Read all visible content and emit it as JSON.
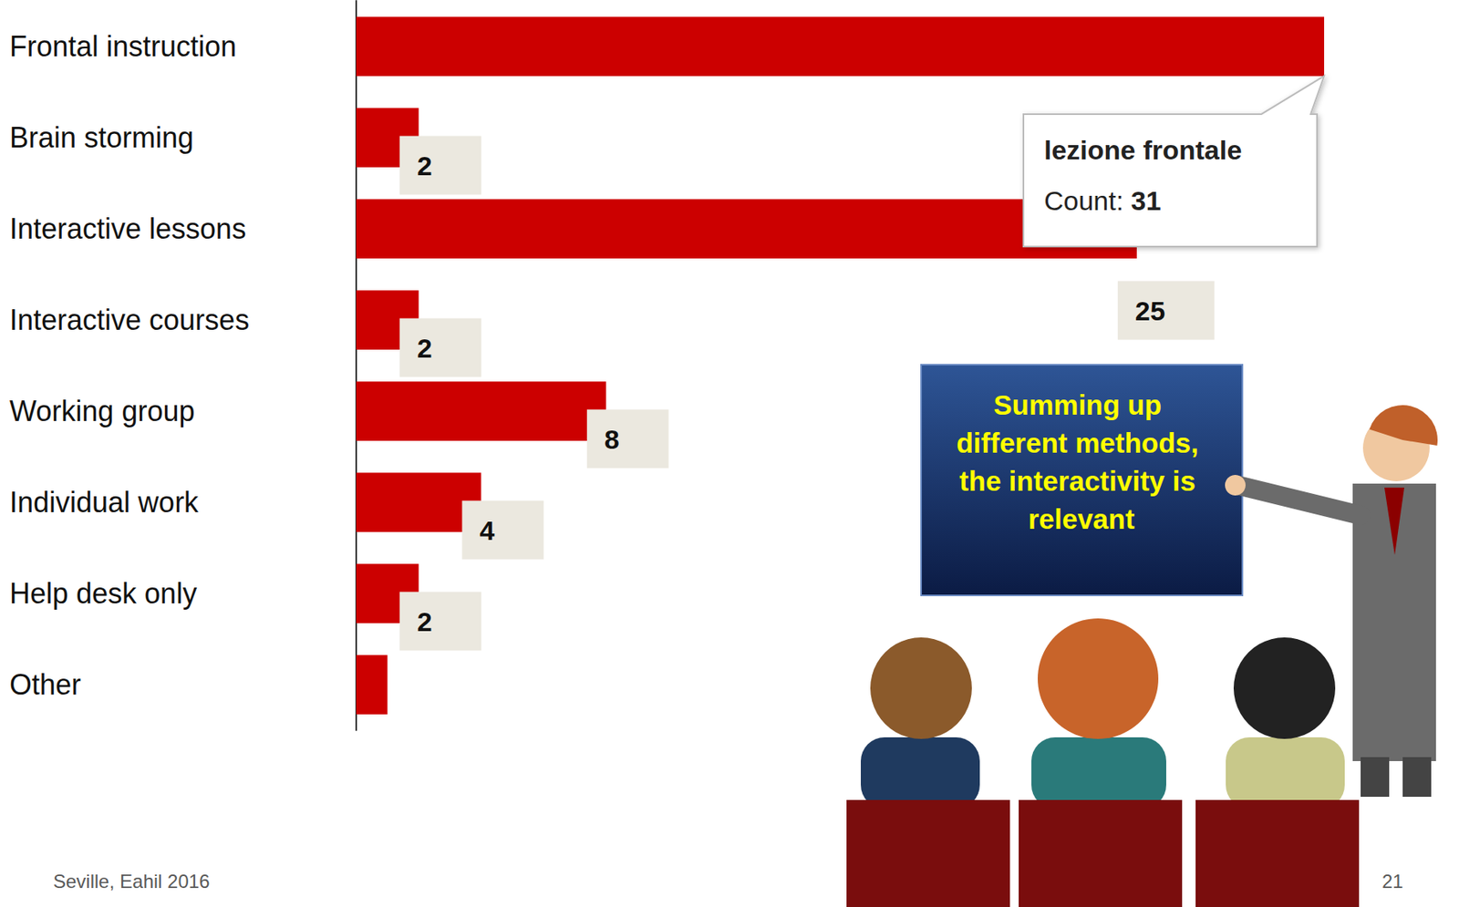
{
  "chart_data": {
    "type": "bar",
    "orientation": "horizontal",
    "categories": [
      "Frontal instruction",
      "Brain storming",
      "Interactive lessons",
      "Interactive courses",
      "Working group",
      "Individual work",
      "Help desk only",
      "Other"
    ],
    "values": [
      31,
      2,
      25,
      2,
      8,
      4,
      2,
      1
    ],
    "value_labels": [
      null,
      "2",
      "25",
      "2",
      "8",
      "4",
      "2",
      null
    ],
    "color": "#cc0000",
    "xlim": [
      0,
      31
    ],
    "grid": false,
    "tick_labels": false,
    "data_labels": true,
    "annotations": [
      {
        "text": "lezione frontale",
        "label": "Count:",
        "category": "Frontal instruction"
      },
      {
        "text": "Summing up different methods, the interactivity is relevant"
      }
    ]
  },
  "footer": {
    "text": "Seville, Eahil 2016",
    "page": 21
  }
}
